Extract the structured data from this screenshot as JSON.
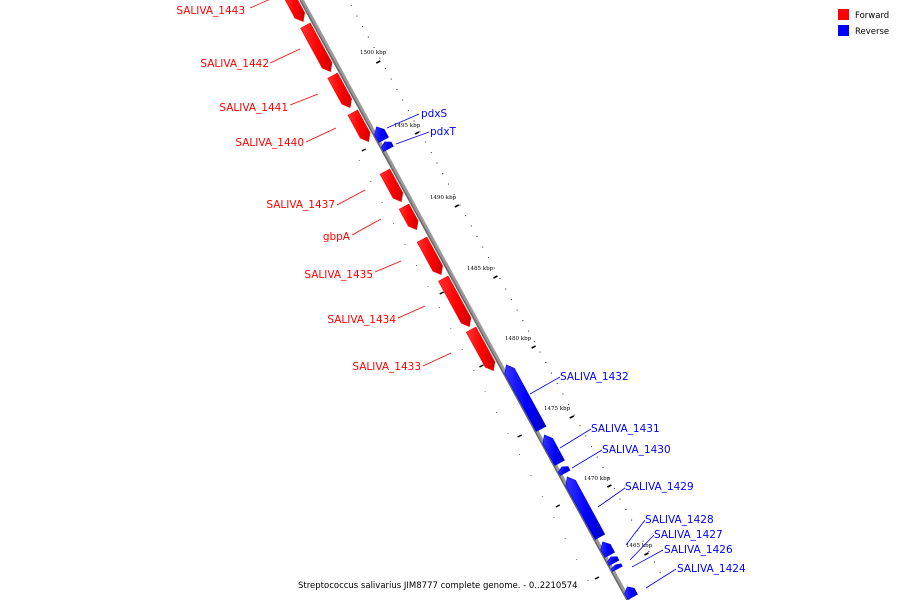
{
  "caption": "Streptococcus salivarius JIM8777 complete genome. - 0..2210574",
  "legend": {
    "forward": {
      "label": "Forward",
      "color": "#ff0000"
    },
    "reverse": {
      "label": "Reverse",
      "color": "#0000ff"
    }
  },
  "ticks": [
    {
      "label": "1500 kbp"
    },
    {
      "label": "1495 kbp"
    },
    {
      "label": "1490 kbp"
    },
    {
      "label": "1485 kbp"
    },
    {
      "label": "1480 kbp"
    },
    {
      "label": "1475 kbp"
    },
    {
      "label": "1470 kbp"
    },
    {
      "label": "1465 kbp"
    }
  ],
  "genes": [
    {
      "name": "SALIVA_1443",
      "strand": "forward"
    },
    {
      "name": "SALIVA_1442",
      "strand": "forward"
    },
    {
      "name": "SALIVA_1441",
      "strand": "forward"
    },
    {
      "name": "SALIVA_1440",
      "strand": "forward"
    },
    {
      "name": "pdxS",
      "strand": "reverse"
    },
    {
      "name": "pdxT",
      "strand": "reverse"
    },
    {
      "name": "SALIVA_1437",
      "strand": "forward"
    },
    {
      "name": "gbpA",
      "strand": "forward"
    },
    {
      "name": "SALIVA_1435",
      "strand": "forward"
    },
    {
      "name": "SALIVA_1434",
      "strand": "forward"
    },
    {
      "name": "SALIVA_1433",
      "strand": "forward"
    },
    {
      "name": "SALIVA_1432",
      "strand": "reverse"
    },
    {
      "name": "SALIVA_1431",
      "strand": "reverse"
    },
    {
      "name": "SALIVA_1430",
      "strand": "reverse"
    },
    {
      "name": "SALIVA_1429",
      "strand": "reverse"
    },
    {
      "name": "SALIVA_1428",
      "strand": "reverse"
    },
    {
      "name": "SALIVA_1427",
      "strand": "reverse"
    },
    {
      "name": "SALIVA_1426",
      "strand": "reverse"
    },
    {
      "name": "SALIVA_1424",
      "strand": "reverse"
    }
  ]
}
